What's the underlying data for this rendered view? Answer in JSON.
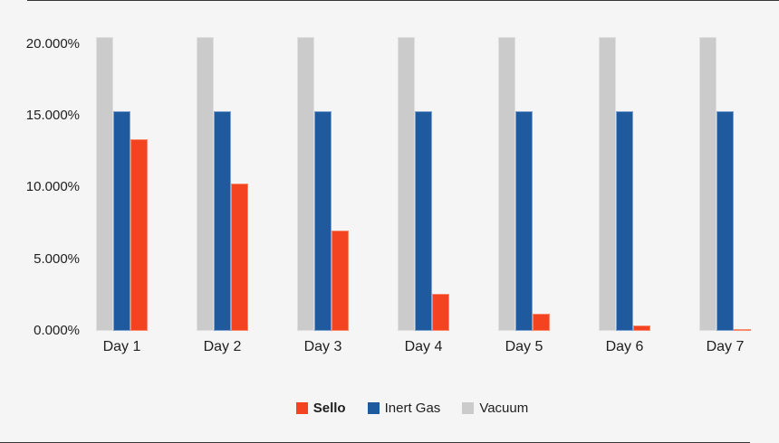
{
  "colors": {
    "background": "#f5f5f5",
    "text": "#1e1e1e",
    "edge_line": "#141414",
    "sello_red": "#f44321",
    "inert_gas_blue": "#1f5a9e",
    "vacuum_gray": "#cbcbcb"
  },
  "chart_data": {
    "type": "bar",
    "title": "",
    "xlabel": "",
    "ylabel": "",
    "grid": false,
    "legend_position": "bottom",
    "categories": [
      "Day 1",
      "Day 2",
      "Day 3",
      "Day 4",
      "Day 5",
      "Day 6",
      "Day 7"
    ],
    "series": [
      {
        "name": "Sello",
        "color": "#f44321",
        "border_color": "#f88b6e",
        "values": [
          13.4,
          10.3,
          7.0,
          2.6,
          1.2,
          0.4,
          0.1
        ]
      },
      {
        "name": "Inert Gas",
        "color": "#1f5a9e",
        "border_color": "#7fa3cf",
        "values": [
          15.3,
          15.3,
          15.3,
          15.3,
          15.3,
          15.3,
          15.3
        ]
      },
      {
        "name": "Vacuum",
        "color": "#cbcbcb",
        "border_color": "#dfdfdf",
        "values": [
          20.5,
          20.5,
          20.5,
          20.5,
          20.5,
          20.5,
          20.5
        ]
      }
    ],
    "y_ticks": [
      {
        "label": "0.000%",
        "value": 0
      },
      {
        "label": "5.000%",
        "value": 5
      },
      {
        "label": "10.000%",
        "value": 10
      },
      {
        "label": "15.000%",
        "value": 15
      },
      {
        "label": "20.000%",
        "value": 20
      }
    ],
    "ylim": [
      0,
      20.5
    ]
  }
}
